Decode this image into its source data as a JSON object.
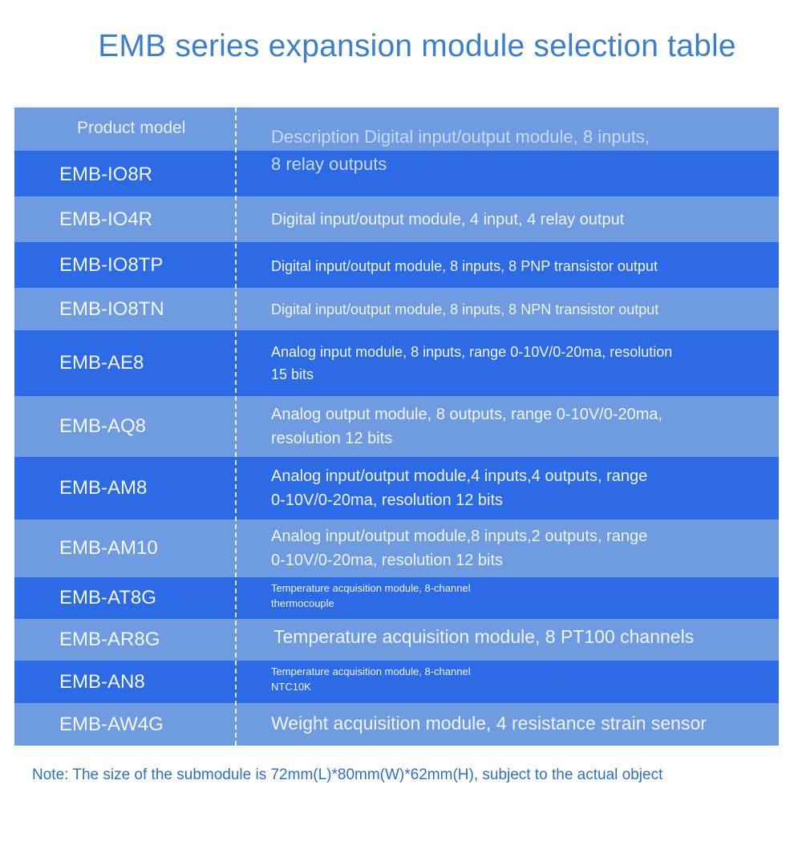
{
  "title": "EMB series expansion module selection table",
  "header": {
    "model_label": "Product model",
    "description_label": "Description Digital input/output module, 8 inputs, 8 relay outputs"
  },
  "rows": [
    {
      "model": "EMB-IO8R",
      "description": ""
    },
    {
      "model": "EMB-IO4R",
      "description": "Digital input/output module, 4 input, 4 relay output"
    },
    {
      "model": "EMB-IO8TP",
      "description": "Digital input/output module, 8 inputs, 8 PNP transistor output"
    },
    {
      "model": "EMB-IO8TN",
      "description": "Digital input/output module, 8 inputs, 8 NPN transistor output"
    },
    {
      "model": "EMB-AE8",
      "description": "Analog input module, 8 inputs, range 0-10V/0-20ma, resolution 15 bits"
    },
    {
      "model": "EMB-AQ8",
      "description": "Analog output module, 8 outputs, range 0-10V/0-20ma, resolution 12 bits"
    },
    {
      "model": "EMB-AM8",
      "description": "Analog input/output module,4 inputs,4 outputs, range 0-10V/0-20ma, resolution 12 bits"
    },
    {
      "model": "EMB-AM10",
      "description": "Analog input/output module,8 inputs,2 outputs, range 0-10V/0-20ma, resolution 12 bits"
    },
    {
      "model": "EMB-AT8G",
      "description": "Temperature acquisition module, 8-channel thermocouple"
    },
    {
      "model": "EMB-AR8G",
      "description": "Temperature acquisition module, 8 PT100 channels"
    },
    {
      "model": "EMB-AN8",
      "description": "Temperature acquisition module, 8-channel NTC10K"
    },
    {
      "model": "EMB-AW4G",
      "description": "Weight acquisition module, 4 resistance strain sensor"
    }
  ],
  "note": "Note: The size of the submodule is 72mm(L)*80mm(W)*62mm(H), subject to the actual object",
  "colors": {
    "title": "#3b7fd0",
    "row_light": "#6f9ce0",
    "row_dark": "#2d6ae6",
    "note": "#2d6fc9"
  }
}
